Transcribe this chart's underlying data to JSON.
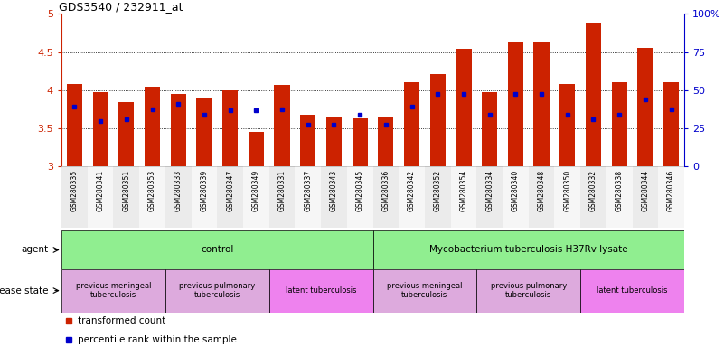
{
  "title": "GDS3540 / 232911_at",
  "samples": [
    "GSM280335",
    "GSM280341",
    "GSM280351",
    "GSM280353",
    "GSM280333",
    "GSM280339",
    "GSM280347",
    "GSM280349",
    "GSM280331",
    "GSM280337",
    "GSM280343",
    "GSM280345",
    "GSM280336",
    "GSM280342",
    "GSM280352",
    "GSM280354",
    "GSM280334",
    "GSM280340",
    "GSM280348",
    "GSM280350",
    "GSM280332",
    "GSM280338",
    "GSM280344",
    "GSM280346"
  ],
  "red_values": [
    4.08,
    3.97,
    3.85,
    4.04,
    3.95,
    3.9,
    4.0,
    3.45,
    4.07,
    3.68,
    3.65,
    3.63,
    3.65,
    4.1,
    4.21,
    4.54,
    3.97,
    4.63,
    4.63,
    4.08,
    4.88,
    4.1,
    4.55,
    4.1
  ],
  "blue_values": [
    3.78,
    3.6,
    3.62,
    3.75,
    3.82,
    3.68,
    3.74,
    3.74,
    3.75,
    3.55,
    3.55,
    3.68,
    3.55,
    3.78,
    3.95,
    3.95,
    3.68,
    3.95,
    3.95,
    3.68,
    3.62,
    3.68,
    3.88,
    3.75
  ],
  "ylim": [
    3.0,
    5.0
  ],
  "yticks": [
    3.0,
    3.5,
    4.0,
    4.5,
    5.0
  ],
  "ytick_labels": [
    "3",
    "3.5",
    "4",
    "4.5",
    "5"
  ],
  "right_yticks": [
    0,
    25,
    50,
    75,
    100
  ],
  "right_ytick_labels": [
    "0",
    "25",
    "50",
    "75",
    "100%"
  ],
  "bar_color": "#cc2200",
  "dot_color": "#0000cc",
  "agent_groups": [
    {
      "label": "control",
      "start": 0,
      "end": 11,
      "color": "#90ee90"
    },
    {
      "label": "Mycobacterium tuberculosis H37Rv lysate",
      "start": 12,
      "end": 23,
      "color": "#90ee90"
    }
  ],
  "disease_groups": [
    {
      "label": "previous meningeal\ntuberculosis",
      "start": 0,
      "end": 3,
      "color": "#ddaadd"
    },
    {
      "label": "previous pulmonary\ntuberculosis",
      "start": 4,
      "end": 7,
      "color": "#ddaadd"
    },
    {
      "label": "latent tuberculosis",
      "start": 8,
      "end": 11,
      "color": "#ee82ee"
    },
    {
      "label": "previous meningeal\ntuberculosis",
      "start": 12,
      "end": 15,
      "color": "#ddaadd"
    },
    {
      "label": "previous pulmonary\ntuberculosis",
      "start": 16,
      "end": 19,
      "color": "#ddaadd"
    },
    {
      "label": "latent tuberculosis",
      "start": 20,
      "end": 23,
      "color": "#ee82ee"
    }
  ],
  "legend_items": [
    {
      "label": "transformed count",
      "color": "#cc2200"
    },
    {
      "label": "percentile rank within the sample",
      "color": "#0000cc"
    }
  ],
  "bar_width": 0.6,
  "bg_color": "#ffffff",
  "tick_color_left": "#cc2200",
  "tick_color_right": "#0000cc"
}
